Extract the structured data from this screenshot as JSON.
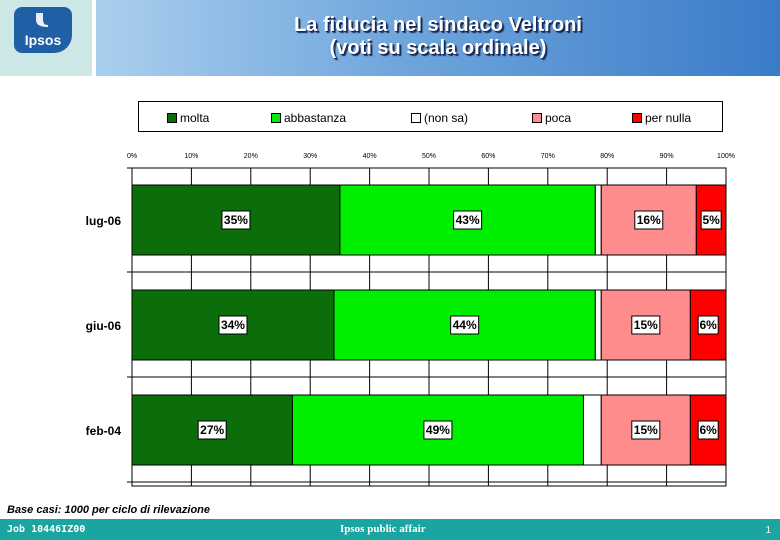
{
  "header": {
    "logo_text": "Ipsos",
    "title_line1": "La fiducia nel sindaco Veltroni",
    "title_line2": "(voti su scala ordinale)"
  },
  "colors": {
    "molta": "#0b6e0b",
    "abbastanza": "#00ee00",
    "non_sa": "#ffffff",
    "poca": "#ff8c8c",
    "per_nulla": "#ff0000"
  },
  "chart_data": {
    "type": "bar",
    "orientation": "horizontal",
    "stacked": "percent",
    "categories": [
      "lug-06",
      "giu-06",
      "feb-04"
    ],
    "series": [
      {
        "name": "molta",
        "values": [
          35,
          34,
          27
        ],
        "labels": [
          "35%",
          "34%",
          "27%"
        ]
      },
      {
        "name": "abbastanza",
        "values": [
          43,
          44,
          49
        ],
        "labels": [
          "43%",
          "44%",
          "49%"
        ]
      },
      {
        "name": "(non sa)",
        "values": [
          1,
          1,
          3
        ],
        "labels": [
          "",
          "",
          ""
        ]
      },
      {
        "name": "poca",
        "values": [
          16,
          15,
          15
        ],
        "labels": [
          "16%",
          "15%",
          "15%"
        ]
      },
      {
        "name": "per nulla",
        "values": [
          5,
          6,
          6
        ],
        "labels": [
          "5%",
          "6%",
          "6%"
        ]
      }
    ],
    "x_ticks": [
      "0%",
      "10%",
      "20%",
      "30%",
      "40%",
      "50%",
      "60%",
      "70%",
      "80%",
      "90%",
      "100%"
    ],
    "xlim": [
      0,
      100
    ],
    "legend_position": "top",
    "grid": true
  },
  "footer": {
    "note": "Base casi: 1000 per ciclo di rilevazione",
    "job": "Job 10446IZ00",
    "center": "Ipsos public affair",
    "page": "1"
  }
}
